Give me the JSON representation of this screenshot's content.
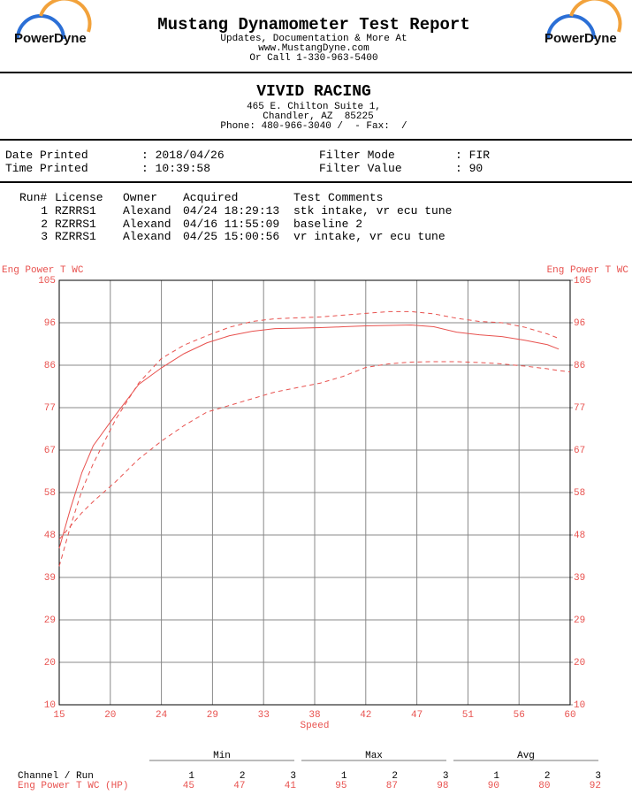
{
  "header": {
    "logo_left": "PowerDyne",
    "logo_right": "PowerDyne",
    "title": "Mustang Dynamometer Test Report",
    "lines": [
      "Updates, Documentation & More At",
      "www.MustangDyne.com",
      "Or Call 1-330-963-5400"
    ]
  },
  "shop": {
    "name": "VIVID RACING",
    "lines": [
      "465 E. Chilton Suite 1,",
      "Chandler, AZ  85225",
      "Phone: 480-966-3040 /  - Fax:  /"
    ]
  },
  "info": [
    [
      "Date Printed",
      ": 2018/04/26",
      "Filter Mode",
      ": FIR"
    ],
    [
      "Time Printed",
      ": 10:39:58",
      "Filter Value",
      ": 90"
    ]
  ],
  "runs": {
    "headers": [
      "Run#",
      "License",
      "Owner",
      "Acquired",
      "Test Comments"
    ],
    "rows": [
      [
        "1",
        "RZRRS1",
        "Alexand",
        "04/24 18:29:13",
        "stk intake, vr ecu tune"
      ],
      [
        "2",
        "RZRRS1",
        "Alexand",
        "04/16 11:55:09",
        "baseline 2"
      ],
      [
        "3",
        "RZRRS1",
        "Alexand",
        "04/25 15:00:56",
        "vr intake, vr ecu tune"
      ]
    ]
  },
  "chart_data": {
    "type": "line",
    "y_label": "Eng Power T WC",
    "y2_label": "Eng Power T WC",
    "x_label": "Speed",
    "grid": true,
    "xlim": [
      15,
      60
    ],
    "xticks": [
      15,
      {
        "value": 19.5,
        "label": "20"
      },
      24,
      {
        "value": 28.5,
        "label": "29"
      },
      33,
      {
        "value": 37.5,
        "label": "38"
      },
      42,
      {
        "value": 46.5,
        "label": "47"
      },
      51,
      {
        "value": 55.5,
        "label": "56"
      },
      60
    ],
    "ylim": [
      10,
      105
    ],
    "yticks": [
      10,
      {
        "value": 19.5,
        "label": "20"
      },
      29,
      {
        "value": 38.5,
        "label": "39"
      },
      48,
      {
        "value": 57.5,
        "label": "58"
      },
      67,
      {
        "value": 76.5,
        "label": "77"
      },
      86,
      {
        "value": 95.5,
        "label": "96"
      },
      105
    ],
    "y2lim": [
      10,
      105
    ],
    "y2ticks": [
      10,
      {
        "value": 19.5,
        "label": "20"
      },
      29,
      {
        "value": 38.5,
        "label": "39"
      },
      48,
      {
        "value": 57.5,
        "label": "58"
      },
      67,
      {
        "value": 76.5,
        "label": "77"
      },
      86,
      {
        "value": 95.5,
        "label": "96"
      },
      105
    ],
    "x": [
      15,
      16,
      17,
      18,
      20,
      22,
      24,
      26,
      28,
      30,
      32,
      34,
      36,
      38,
      40,
      42,
      44,
      46,
      48,
      50,
      52,
      54,
      56,
      58,
      59,
      60
    ],
    "series": [
      {
        "color": "#e8524f",
        "line_style": "solid",
        "values": [
          45,
          54,
          62,
          68,
          75,
          81.7,
          85.4,
          88.6,
          91,
          92.6,
          93.6,
          94.2,
          94.3,
          94.4,
          94.6,
          94.8,
          94.9,
          95,
          94.6,
          93.4,
          92.8,
          92.4,
          91.6,
          90.6,
          89.6,
          null
        ]
      },
      {
        "color": "#e8524f",
        "line_style": "dashed",
        "values": [
          47,
          50,
          53,
          55.5,
          60,
          65,
          69,
          72.5,
          75.5,
          77,
          78.5,
          80,
          81,
          82,
          83.5,
          85.5,
          86.3,
          86.7,
          86.8,
          86.8,
          86.6,
          86.3,
          85.8,
          85.2,
          84.8,
          84.5
        ]
      },
      {
        "color": "#e8524f",
        "line_style": "dashed",
        "values": [
          41,
          50,
          58,
          64,
          74,
          82,
          87.5,
          90.5,
          92.6,
          94.5,
          95.8,
          96.4,
          96.6,
          96.8,
          97.2,
          97.6,
          98,
          98,
          97.5,
          96.5,
          95.8,
          95.5,
          94.5,
          93,
          92,
          null
        ]
      }
    ]
  },
  "summary": {
    "groups": [
      "Min",
      "Max",
      "Avg"
    ],
    "channel_label": "Channel / Run",
    "runs": [
      "1",
      "2",
      "3"
    ],
    "row_label": "Eng Power T WC (HP)",
    "values": [
      [
        "45",
        "47",
        "41"
      ],
      [
        "95",
        "87",
        "98"
      ],
      [
        "90",
        "80",
        "92"
      ]
    ]
  }
}
